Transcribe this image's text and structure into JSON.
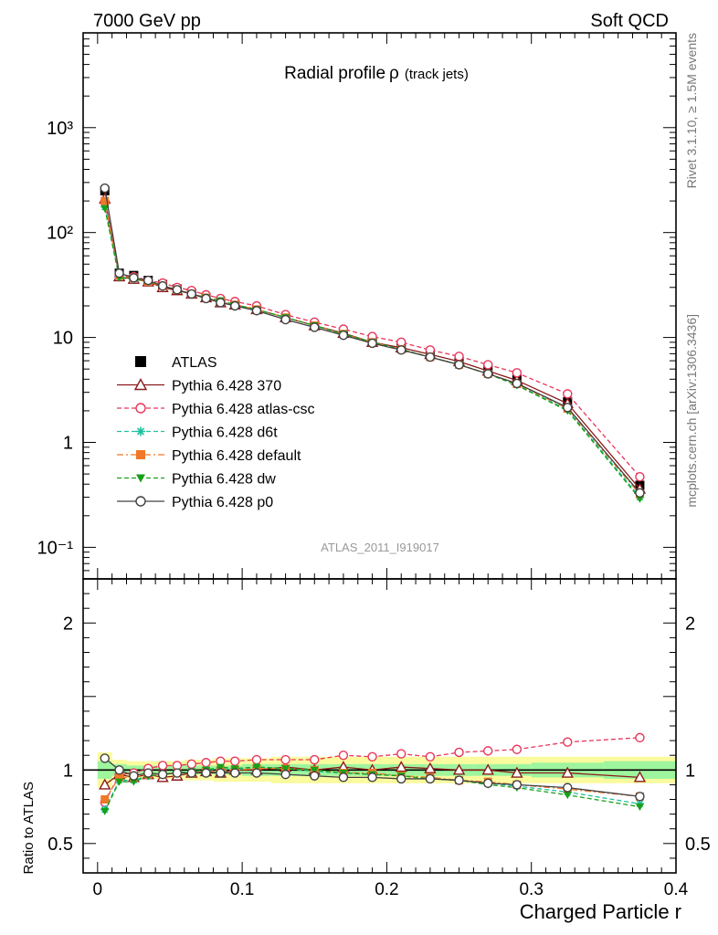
{
  "header": {
    "left_label": "7000 GeV pp",
    "right_label": "Soft QCD"
  },
  "side_labels": {
    "rivet": "Rivet 3.1.10, ≥ 1.5M events",
    "mcplots": "mcplots.cern.ch [arXiv:1306.3436]"
  },
  "chart_data": [
    {
      "type": "scatter",
      "panel": "main",
      "title": "Radial profile",
      "title_symbol": "ρ",
      "title_suffix": "(track jets)",
      "watermark": "ATLAS_2011_I919017",
      "yscale": "log",
      "xlim": [
        -0.01,
        0.4
      ],
      "ylim": [
        0.05,
        8000
      ],
      "ytick_labels": [
        "10⁻¹",
        "1",
        "10",
        "10²",
        "10³"
      ],
      "xticks": [
        0,
        0.1,
        0.2,
        0.3,
        0.4
      ],
      "legend_position": "left-center",
      "x": [
        0.005,
        0.015,
        0.025,
        0.035,
        0.045,
        0.055,
        0.065,
        0.075,
        0.085,
        0.095,
        0.11,
        0.13,
        0.15,
        0.17,
        0.19,
        0.21,
        0.23,
        0.25,
        0.27,
        0.29,
        0.325,
        0.375
      ],
      "series": [
        {
          "name": "ATLAS",
          "color": "#000000",
          "marker": "square-filled",
          "line": "none",
          "values": [
            250,
            41,
            39,
            35,
            32,
            29,
            26.5,
            24,
            22,
            20.5,
            18.5,
            15.5,
            13,
            11,
            9.2,
            8,
            6.9,
            5.9,
            4.9,
            4.0,
            2.45,
            0.39
          ]
        },
        {
          "name": "Pythia 6.428 370",
          "color": "#8b1a1a",
          "marker": "triangle-open",
          "line": "solid",
          "values": [
            210,
            38,
            36,
            34,
            30,
            28,
            26,
            24,
            21.5,
            20.5,
            18.5,
            15.5,
            13,
            11,
            9.0,
            8.0,
            6.9,
            5.9,
            4.8,
            3.9,
            2.35,
            0.36
          ]
        },
        {
          "name": "Pythia 6.428 atlas-csc",
          "color": "#e8345a",
          "marker": "circle-open",
          "line": "dashed",
          "values": [
            195,
            40,
            38,
            35,
            33,
            30,
            28,
            25.5,
            23.5,
            22,
            20,
            16.5,
            14,
            12,
            10.2,
            9.0,
            7.6,
            6.6,
            5.5,
            4.6,
            2.9,
            0.47
          ]
        },
        {
          "name": "Pythia 6.428 d6t",
          "color": "#20c0a0",
          "marker": "star",
          "line": "dashed",
          "values": [
            175,
            38,
            36,
            34,
            31,
            28.5,
            26,
            24,
            22,
            20.5,
            18.5,
            15.5,
            13,
            10.8,
            9.0,
            7.7,
            6.5,
            5.5,
            4.5,
            3.55,
            2.05,
            0.3
          ]
        },
        {
          "name": "Pythia 6.428 default",
          "color": "#f07828",
          "marker": "square-filled",
          "line": "dashdot",
          "values": [
            200,
            39,
            37,
            34,
            31,
            28.5,
            26,
            24,
            22,
            20.5,
            18.5,
            15.5,
            13,
            10.8,
            9.0,
            7.7,
            6.5,
            5.5,
            4.5,
            3.6,
            2.1,
            0.32
          ]
        },
        {
          "name": "Pythia 6.428 dw",
          "color": "#18a018",
          "marker": "triangle-down-filled",
          "line": "dashed",
          "values": [
            170,
            37,
            36,
            34,
            31,
            28.5,
            26,
            24,
            22.5,
            20.5,
            18.5,
            15.5,
            13,
            10.8,
            9.0,
            7.7,
            6.5,
            5.5,
            4.5,
            3.5,
            2.0,
            0.29
          ]
        },
        {
          "name": "Pythia 6.428 p0",
          "color": "#404040",
          "marker": "circle-open",
          "line": "solid",
          "values": [
            265,
            41,
            37,
            35,
            31,
            28.5,
            26,
            23.5,
            21.5,
            20,
            18,
            14.8,
            12.5,
            10.5,
            8.8,
            7.6,
            6.5,
            5.5,
            4.5,
            3.65,
            2.15,
            0.33
          ]
        }
      ]
    },
    {
      "type": "scatter",
      "panel": "ratio",
      "ylabel": "Ratio to ATLAS",
      "xlabel": "Charged Particle r",
      "xlim": [
        -0.01,
        0.4
      ],
      "ylim": [
        0.3,
        2.3
      ],
      "yticks": [
        0.5,
        1,
        2
      ],
      "ytick_labels": [
        "0.5",
        "1",
        "2"
      ],
      "xticks": [
        0,
        0.1,
        0.2,
        0.3,
        0.4
      ],
      "xtick_labels": [
        "0",
        "0.1",
        "0.2",
        "0.3",
        "0.4"
      ],
      "reference": 1,
      "bands": {
        "bins": [
          [
            0,
            0.01
          ],
          [
            0.01,
            0.02
          ],
          [
            0.02,
            0.03
          ],
          [
            0.03,
            0.04
          ],
          [
            0.04,
            0.05
          ],
          [
            0.05,
            0.06
          ],
          [
            0.06,
            0.07
          ],
          [
            0.07,
            0.08
          ],
          [
            0.08,
            0.09
          ],
          [
            0.09,
            0.1
          ],
          [
            0.1,
            0.12
          ],
          [
            0.12,
            0.14
          ],
          [
            0.14,
            0.16
          ],
          [
            0.16,
            0.18
          ],
          [
            0.18,
            0.2
          ],
          [
            0.2,
            0.22
          ],
          [
            0.22,
            0.24
          ],
          [
            0.24,
            0.26
          ],
          [
            0.26,
            0.28
          ],
          [
            0.28,
            0.3
          ],
          [
            0.3,
            0.35
          ],
          [
            0.35,
            0.4
          ]
        ],
        "inner_half_width": [
          0.06,
          0.04,
          0.03,
          0.03,
          0.03,
          0.03,
          0.03,
          0.03,
          0.03,
          0.03,
          0.04,
          0.04,
          0.04,
          0.04,
          0.04,
          0.04,
          0.04,
          0.04,
          0.04,
          0.04,
          0.05,
          0.06
        ],
        "outer_half_width": [
          0.12,
          0.07,
          0.06,
          0.06,
          0.06,
          0.06,
          0.07,
          0.07,
          0.08,
          0.08,
          0.08,
          0.09,
          0.09,
          0.09,
          0.09,
          0.09,
          0.09,
          0.09,
          0.09,
          0.09,
          0.09,
          0.09
        ],
        "inner_color": "#9ef59e",
        "outer_color": "#fafa9e"
      },
      "x": [
        0.005,
        0.015,
        0.025,
        0.035,
        0.045,
        0.055,
        0.065,
        0.075,
        0.085,
        0.095,
        0.11,
        0.13,
        0.15,
        0.17,
        0.19,
        0.21,
        0.23,
        0.25,
        0.27,
        0.29,
        0.325,
        0.375
      ],
      "series": [
        {
          "name": "Pythia 6.428 370",
          "color": "#8b1a1a",
          "marker": "triangle-open",
          "line": "solid",
          "values": [
            0.9,
            0.97,
            0.95,
            0.97,
            0.95,
            0.96,
            0.98,
            0.99,
            0.98,
            1.0,
            1.0,
            1.02,
            1.0,
            1.02,
            1.0,
            1.02,
            1.01,
            1.0,
            1.0,
            0.98,
            0.98,
            0.95
          ]
        },
        {
          "name": "Pythia 6.428 atlas-csc",
          "color": "#e8345a",
          "marker": "circle-open",
          "line": "dashed",
          "values": [
            0.78,
            0.97,
            0.98,
            1.01,
            1.03,
            1.03,
            1.04,
            1.05,
            1.06,
            1.06,
            1.07,
            1.07,
            1.07,
            1.1,
            1.09,
            1.11,
            1.09,
            1.12,
            1.13,
            1.14,
            1.19,
            1.22
          ]
        },
        {
          "name": "Pythia 6.428 d6t",
          "color": "#20c0a0",
          "marker": "star",
          "line": "dashed",
          "values": [
            0.73,
            0.93,
            0.93,
            0.96,
            0.97,
            0.98,
            0.99,
            1.0,
            1.01,
            1.0,
            1.02,
            1.01,
            0.99,
            0.98,
            0.97,
            0.96,
            0.94,
            0.93,
            0.91,
            0.89,
            0.85,
            0.77
          ]
        },
        {
          "name": "Pythia 6.428 default",
          "color": "#f07828",
          "marker": "square-filled",
          "line": "dashdot",
          "values": [
            0.8,
            0.95,
            0.95,
            0.97,
            0.97,
            0.98,
            0.98,
            0.99,
            1.0,
            1.0,
            1.01,
            1.01,
            1.0,
            0.98,
            0.98,
            0.96,
            0.95,
            0.93,
            0.92,
            0.9,
            0.87,
            0.82
          ]
        },
        {
          "name": "Pythia 6.428 dw",
          "color": "#18a018",
          "marker": "triangle-down-filled",
          "line": "dashed",
          "values": [
            0.72,
            0.92,
            0.92,
            0.96,
            0.97,
            0.98,
            0.99,
            1.0,
            1.02,
            1.01,
            1.02,
            1.01,
            1.0,
            0.98,
            0.97,
            0.96,
            0.94,
            0.93,
            0.9,
            0.88,
            0.83,
            0.75
          ]
        },
        {
          "name": "Pythia 6.428 p0",
          "color": "#404040",
          "marker": "circle-open",
          "line": "solid",
          "values": [
            1.08,
            1.0,
            0.96,
            0.98,
            0.97,
            0.98,
            0.98,
            0.98,
            0.98,
            0.98,
            0.98,
            0.97,
            0.96,
            0.95,
            0.95,
            0.94,
            0.94,
            0.93,
            0.91,
            0.9,
            0.88,
            0.82
          ]
        }
      ]
    }
  ]
}
